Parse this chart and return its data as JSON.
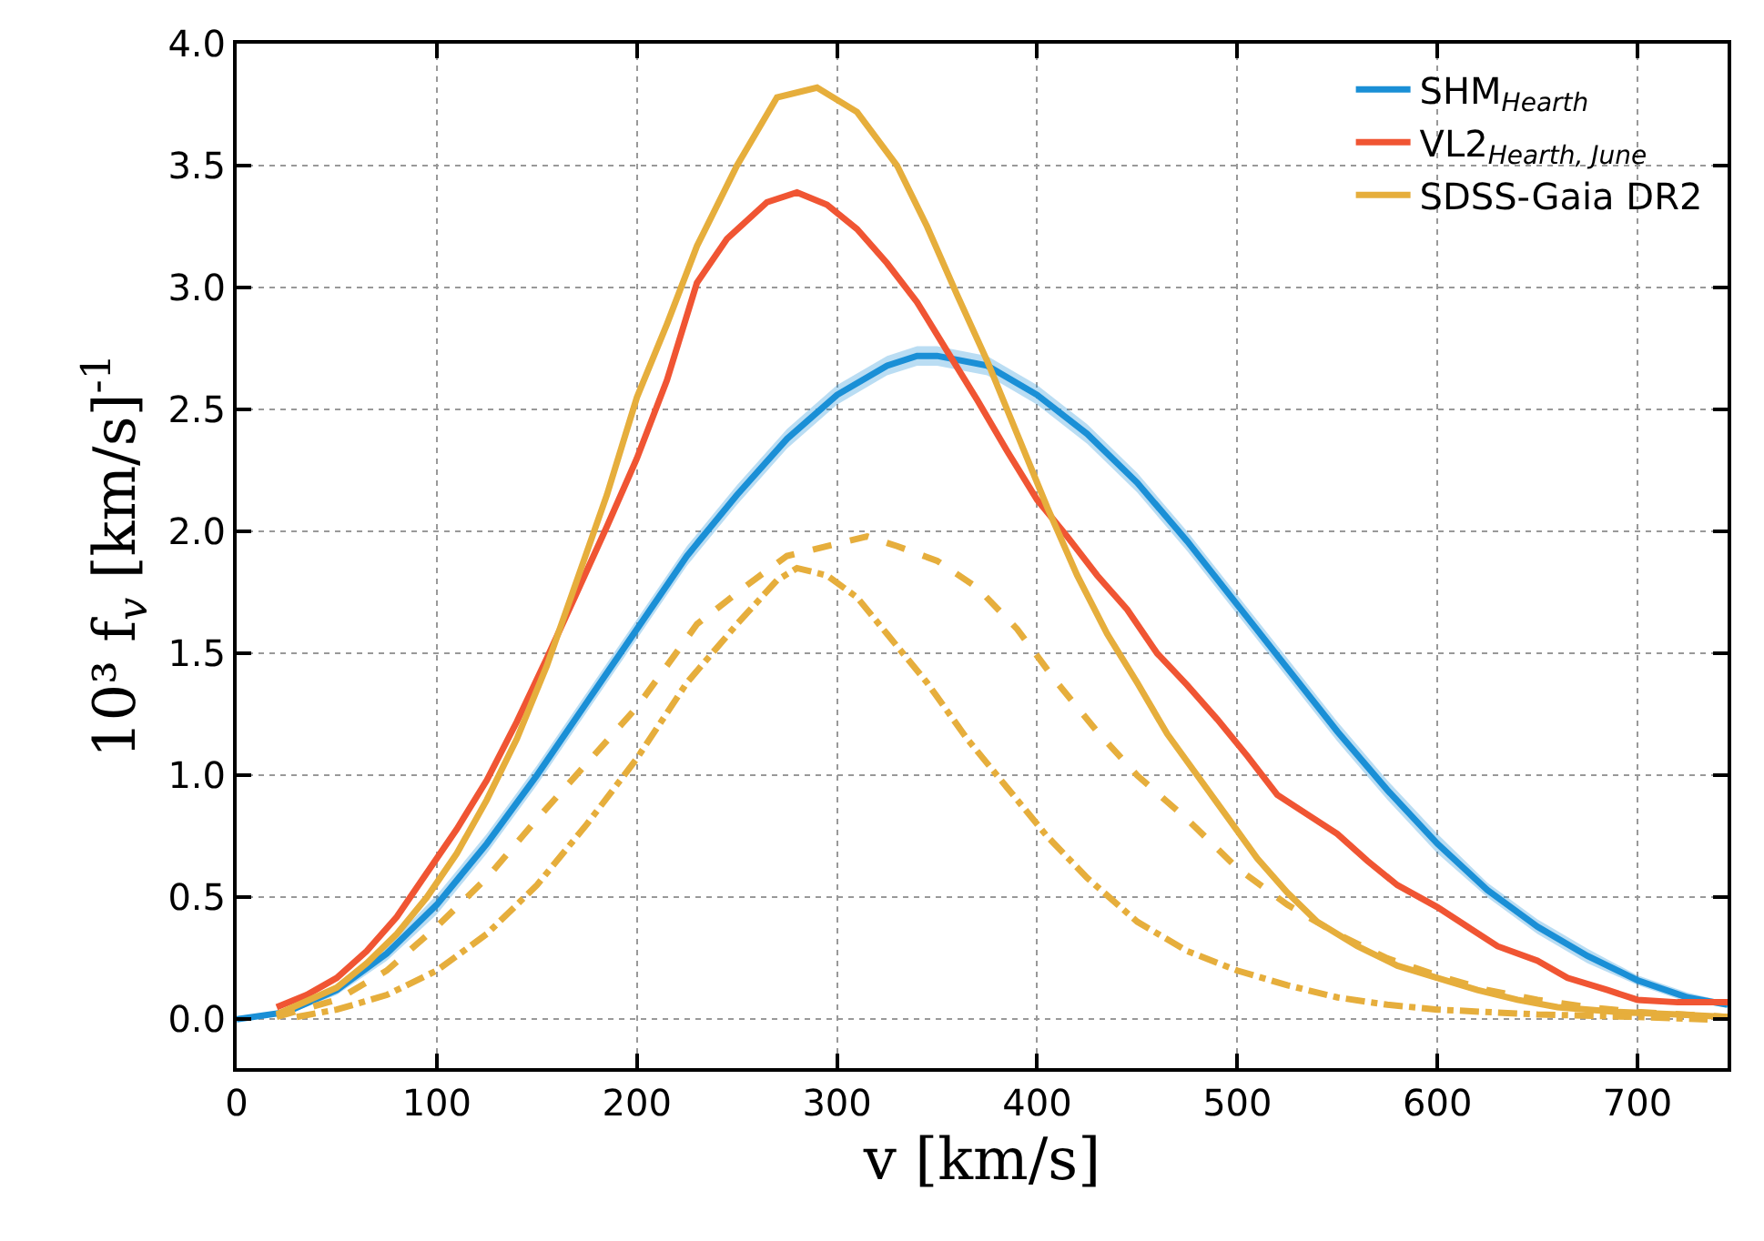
{
  "chart_data": {
    "type": "line",
    "xlabel": "v [km/s]",
    "ylabel": "10³ f$_{v}$ [km/s]$^{-1}$",
    "xlim": [
      0,
      745
    ],
    "xticks": [
      0,
      100,
      200,
      300,
      400,
      500,
      600,
      700
    ],
    "ylim": [
      -0.2,
      4.0
    ],
    "yticks": [
      {
        "value": 0,
        "label": "0.0"
      },
      0.5,
      {
        "value": 1,
        "label": "1.0"
      },
      1.5,
      {
        "value": 2,
        "label": "2.0"
      },
      2.5,
      {
        "value": 3,
        "label": "3.0"
      },
      3.5,
      {
        "value": 4,
        "label": "4.0"
      }
    ],
    "grid": true,
    "legend": "top right",
    "marker": "none",
    "series": [
      {
        "name": "SHM$_{Hearth}$",
        "color": "#1a8fd6",
        "line_style": "solid",
        "x": [
          0,
          25,
          50,
          75,
          100,
          125,
          150,
          175,
          200,
          225,
          250,
          275,
          300,
          325,
          340,
          350,
          375,
          400,
          425,
          450,
          475,
          500,
          525,
          550,
          575,
          600,
          625,
          650,
          675,
          700,
          725,
          745
        ],
        "values": [
          0,
          0.03,
          0.12,
          0.27,
          0.47,
          0.72,
          1.0,
          1.3,
          1.6,
          1.9,
          2.15,
          2.38,
          2.56,
          2.68,
          2.72,
          2.72,
          2.68,
          2.56,
          2.4,
          2.2,
          1.96,
          1.7,
          1.44,
          1.18,
          0.94,
          0.72,
          0.53,
          0.38,
          0.26,
          0.16,
          0.09,
          0.06
        ],
        "lower": [
          0,
          0.02,
          0.1,
          0.24,
          0.43,
          0.68,
          0.96,
          1.26,
          1.56,
          1.86,
          2.11,
          2.34,
          2.52,
          2.64,
          2.68,
          2.68,
          2.64,
          2.52,
          2.36,
          2.16,
          1.92,
          1.66,
          1.4,
          1.14,
          0.9,
          0.68,
          0.5,
          0.35,
          0.23,
          0.14,
          0.07,
          0.05
        ],
        "upper": [
          0,
          0.04,
          0.14,
          0.3,
          0.51,
          0.76,
          1.04,
          1.34,
          1.64,
          1.94,
          2.19,
          2.42,
          2.6,
          2.72,
          2.76,
          2.76,
          2.72,
          2.6,
          2.44,
          2.24,
          2.0,
          1.74,
          1.48,
          1.22,
          0.98,
          0.76,
          0.56,
          0.41,
          0.29,
          0.18,
          0.11,
          0.07
        ]
      },
      {
        "name": "VL2$_{Hearth, June}$",
        "color": "#f05533",
        "line_style": "solid",
        "x": [
          20,
          35,
          50,
          65,
          80,
          95,
          110,
          125,
          140,
          155,
          170,
          185,
          200,
          215,
          230,
          245,
          265,
          280,
          295,
          310,
          325,
          340,
          355,
          370,
          385,
          400,
          415,
          430,
          445,
          460,
          475,
          490,
          505,
          520,
          535,
          550,
          565,
          580,
          600,
          615,
          630,
          650,
          665,
          685,
          700,
          720,
          745
        ],
        "values": [
          0.05,
          0.1,
          0.17,
          0.28,
          0.42,
          0.6,
          0.78,
          0.98,
          1.22,
          1.48,
          1.75,
          2.02,
          2.3,
          2.62,
          3.02,
          3.2,
          3.35,
          3.39,
          3.34,
          3.24,
          3.1,
          2.94,
          2.74,
          2.54,
          2.33,
          2.13,
          1.98,
          1.82,
          1.68,
          1.5,
          1.37,
          1.23,
          1.08,
          0.92,
          0.84,
          0.76,
          0.65,
          0.55,
          0.46,
          0.38,
          0.3,
          0.24,
          0.17,
          0.12,
          0.08,
          0.07,
          0.07
        ]
      },
      {
        "name": "SDSS-Gaia DR2",
        "color": "#e6ae3c",
        "line_style": "solid",
        "x": [
          20,
          50,
          65,
          80,
          95,
          110,
          125,
          140,
          155,
          170,
          185,
          200,
          215,
          230,
          250,
          270,
          290,
          310,
          330,
          345,
          360,
          375,
          390,
          405,
          420,
          435,
          450,
          465,
          480,
          495,
          510,
          525,
          540,
          560,
          580,
          600,
          620,
          640,
          660,
          690,
          720,
          745
        ],
        "values": [
          0.02,
          0.13,
          0.23,
          0.35,
          0.5,
          0.68,
          0.9,
          1.15,
          1.45,
          1.8,
          2.15,
          2.55,
          2.85,
          3.17,
          3.5,
          3.78,
          3.82,
          3.72,
          3.5,
          3.25,
          2.97,
          2.7,
          2.4,
          2.1,
          1.82,
          1.58,
          1.38,
          1.17,
          1.0,
          0.83,
          0.66,
          0.52,
          0.4,
          0.3,
          0.22,
          0.17,
          0.12,
          0.08,
          0.05,
          0.03,
          0.02,
          0.01
        ]
      },
      {
        "color": "#e6ae3c",
        "line_style": "dashed",
        "x": [
          20,
          50,
          75,
          100,
          125,
          150,
          175,
          200,
          230,
          255,
          275,
          300,
          315,
          330,
          350,
          370,
          390,
          410,
          430,
          450,
          475,
          500,
          525,
          550,
          575,
          600,
          625,
          650,
          675,
          700,
          745
        ],
        "values": [
          0.01,
          0.08,
          0.2,
          0.38,
          0.58,
          0.82,
          1.05,
          1.28,
          1.62,
          1.78,
          1.9,
          1.95,
          1.98,
          1.94,
          1.88,
          1.77,
          1.6,
          1.38,
          1.18,
          1.0,
          0.82,
          0.62,
          0.47,
          0.35,
          0.25,
          0.18,
          0.12,
          0.08,
          0.05,
          0.03,
          0.01
        ]
      },
      {
        "color": "#e6ae3c",
        "line_style": "dashdot",
        "x": [
          30,
          50,
          75,
          100,
          125,
          150,
          175,
          200,
          225,
          250,
          270,
          280,
          295,
          310,
          325,
          345,
          365,
          385,
          405,
          425,
          450,
          475,
          500,
          525,
          550,
          575,
          600,
          650,
          700,
          735
        ],
        "values": [
          0.01,
          0.04,
          0.1,
          0.2,
          0.35,
          0.55,
          0.8,
          1.07,
          1.38,
          1.62,
          1.8,
          1.85,
          1.82,
          1.73,
          1.58,
          1.38,
          1.15,
          0.95,
          0.75,
          0.58,
          0.4,
          0.28,
          0.2,
          0.14,
          0.09,
          0.06,
          0.04,
          0.02,
          0.01,
          0.0
        ]
      }
    ]
  }
}
